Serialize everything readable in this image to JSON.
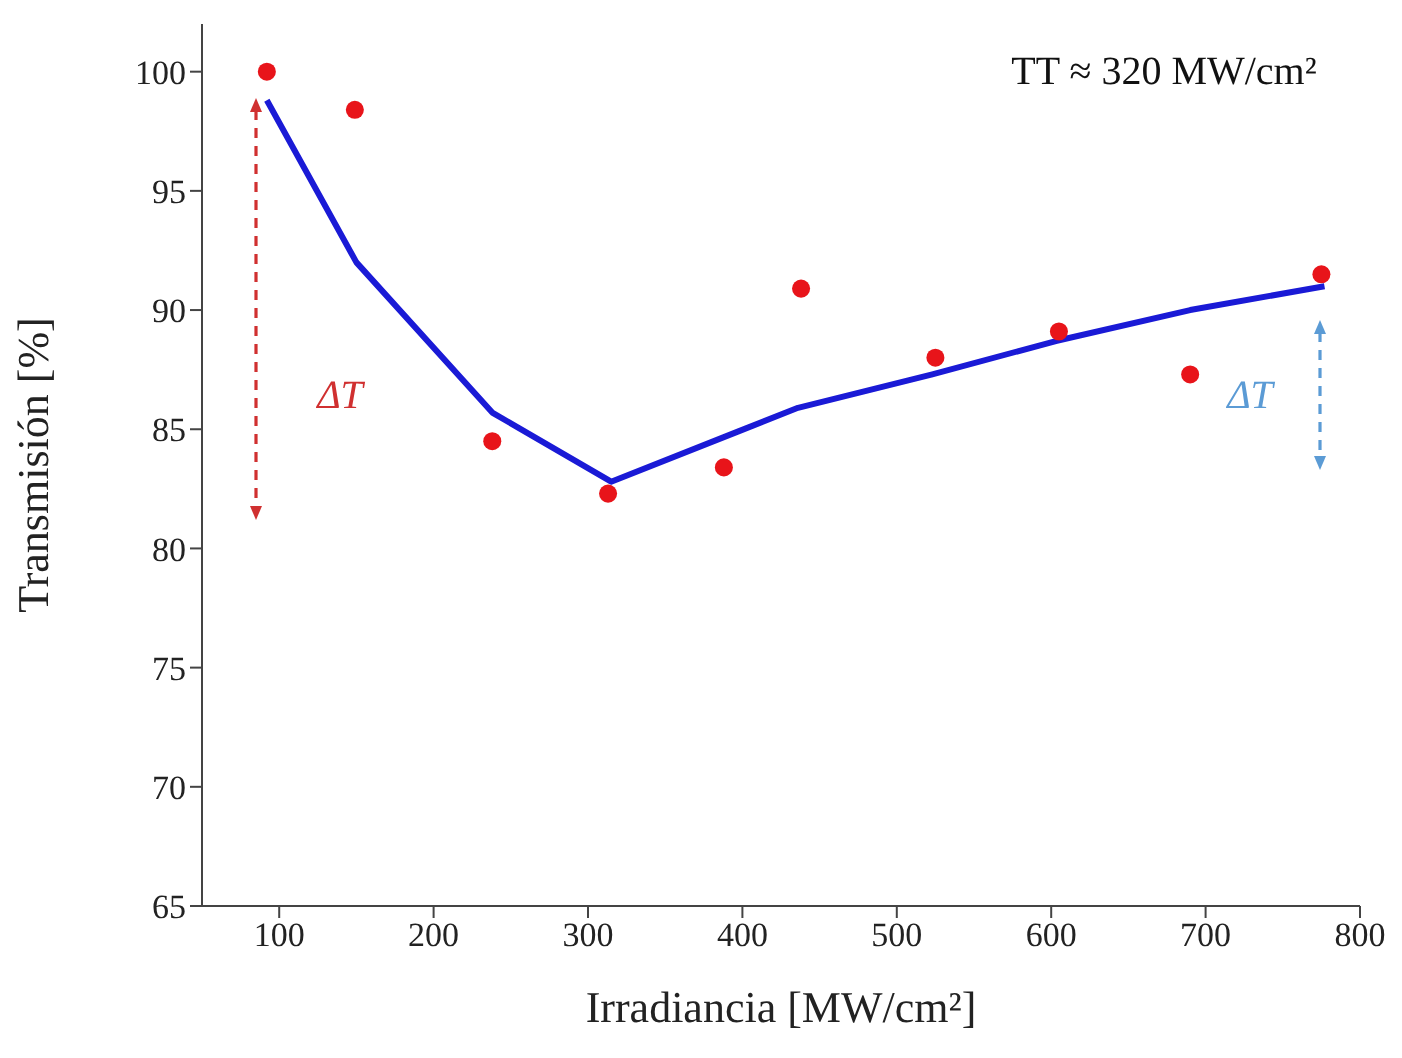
{
  "chart_data": {
    "type": "scatter",
    "xlabel": "Irradiancia [MW/cm²]",
    "ylabel": "Transmisión [%]",
    "xlim": [
      50,
      800
    ],
    "xticks": [
      100,
      200,
      300,
      400,
      500,
      600,
      700,
      800
    ],
    "ylim": [
      65,
      102
    ],
    "yticks": [
      65,
      70,
      75,
      80,
      85,
      90,
      95,
      100
    ],
    "grid": false,
    "legend": false,
    "marker": "circle",
    "series": [
      {
        "type": "line",
        "color": "#1a1ad6",
        "x": [
          92,
          150,
          238,
          315,
          397,
          436,
          523,
          603,
          690,
          777
        ],
        "values": [
          98.8,
          92,
          85.7,
          82.8,
          84.9,
          85.9,
          87.3,
          88.7,
          90,
          91
        ],
        "marker": "none",
        "line_style": "solid"
      },
      {
        "color": "#e8141a",
        "x": [
          92,
          149,
          238,
          313,
          388,
          438,
          525,
          605,
          690,
          775
        ],
        "values": [
          100,
          98.4,
          84.5,
          82.3,
          83.4,
          90.9,
          88,
          89.1,
          87.3,
          91.5
        ]
      }
    ],
    "annotations": [
      "TT ≈ 320 MW/cm²",
      "ΔT",
      "ΔT"
    ]
  }
}
